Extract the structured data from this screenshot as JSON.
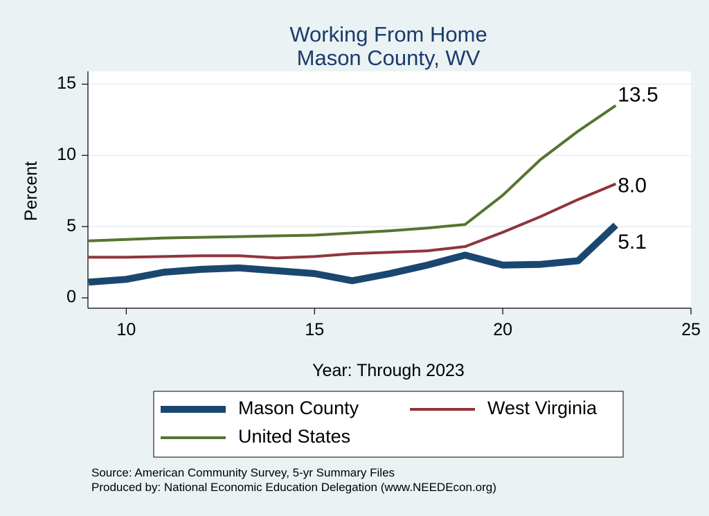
{
  "chart_data": {
    "type": "line",
    "title": [
      "Working From Home",
      "Mason County, WV"
    ],
    "xlabel": "Year: Through 2023",
    "ylabel": "Percent",
    "xlim": [
      9,
      25
    ],
    "ylim": [
      0,
      15
    ],
    "xticks": [
      10,
      15,
      20,
      25
    ],
    "yticks": [
      0,
      5,
      10,
      15
    ],
    "grid": "horizontal",
    "legend_position": "bottom",
    "series": [
      {
        "name": "Mason County",
        "color": "#1a476f",
        "x": [
          9,
          10,
          11,
          12,
          13,
          14,
          15,
          16,
          17,
          18,
          19,
          20,
          21,
          22,
          23
        ],
        "values": [
          1.1,
          1.3,
          1.8,
          2.0,
          2.1,
          1.9,
          1.7,
          1.2,
          1.7,
          2.3,
          3.0,
          2.3,
          2.35,
          2.6,
          5.1
        ],
        "end_label": "5.1"
      },
      {
        "name": "West Virginia",
        "color": "#90353b",
        "x": [
          9,
          10,
          11,
          12,
          13,
          14,
          15,
          16,
          17,
          18,
          19,
          20,
          21,
          22,
          23
        ],
        "values": [
          2.85,
          2.85,
          2.9,
          2.95,
          2.95,
          2.8,
          2.9,
          3.1,
          3.2,
          3.3,
          3.6,
          4.6,
          5.7,
          6.9,
          8.0
        ],
        "end_label": "8.0"
      },
      {
        "name": "United States",
        "color": "#55752f",
        "x": [
          9,
          10,
          11,
          12,
          13,
          14,
          15,
          16,
          17,
          18,
          19,
          20,
          21,
          22,
          23
        ],
        "values": [
          4.0,
          4.1,
          4.2,
          4.25,
          4.3,
          4.35,
          4.4,
          4.55,
          4.7,
          4.9,
          5.15,
          7.2,
          9.7,
          11.7,
          13.5
        ],
        "end_label": "13.5"
      }
    ],
    "notes": [
      "Source: American Community Survey, 5-yr Summary Files",
      "Produced by: National Economic Education Delegation (www.NEEDEcon.org)"
    ]
  }
}
